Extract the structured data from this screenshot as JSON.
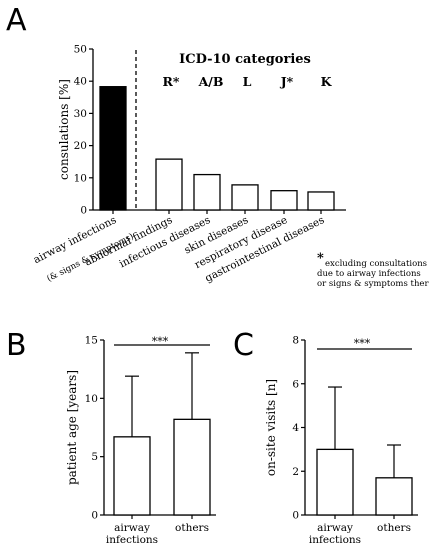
{
  "panels": {
    "a": {
      "letter": "A",
      "header": "ICD-10 categories",
      "codes": [
        "R*",
        "A/B",
        "L",
        "J*",
        "K"
      ],
      "footnote": [
        "*",
        "excluding consultations",
        "due to airway infections",
        "or signs & symptoms thereof"
      ],
      "subcaption": "(& signs & symptoms)"
    },
    "b": {
      "letter": "B",
      "significance": "***"
    },
    "c": {
      "letter": "C",
      "significance": "***"
    }
  },
  "colors": {
    "highlight": "#000000",
    "bar": "#ffffff",
    "stroke": "#000000"
  },
  "chart_data": [
    {
      "type": "bar",
      "categories": [
        "airway infections",
        "abnormal findings",
        "infectious diseases",
        "skin diseases",
        "respiratory disease",
        "gastrointestinal diseases"
      ],
      "values": [
        38.3,
        15.8,
        11.0,
        7.8,
        6.0,
        5.6
      ],
      "ylabel": "consulations [%]",
      "ylim": [
        0,
        50
      ],
      "yticks": [
        0,
        10,
        20,
        30,
        40,
        50
      ],
      "highlight_index": 0
    },
    {
      "type": "bar",
      "categories": [
        "airway infections",
        "others"
      ],
      "values": [
        6.7,
        8.2
      ],
      "errors": [
        5.2,
        5.7
      ],
      "ylabel": "patient age [years]",
      "ylim": [
        0,
        15
      ],
      "yticks": [
        0,
        5,
        10,
        15
      ]
    },
    {
      "type": "bar",
      "categories": [
        "airway infections",
        "others"
      ],
      "values": [
        3.0,
        1.7
      ],
      "errors": [
        2.85,
        1.5
      ],
      "ylabel": "on-site visits [n]",
      "ylim": [
        0,
        8
      ],
      "yticks": [
        0,
        2,
        4,
        6,
        8
      ]
    }
  ]
}
